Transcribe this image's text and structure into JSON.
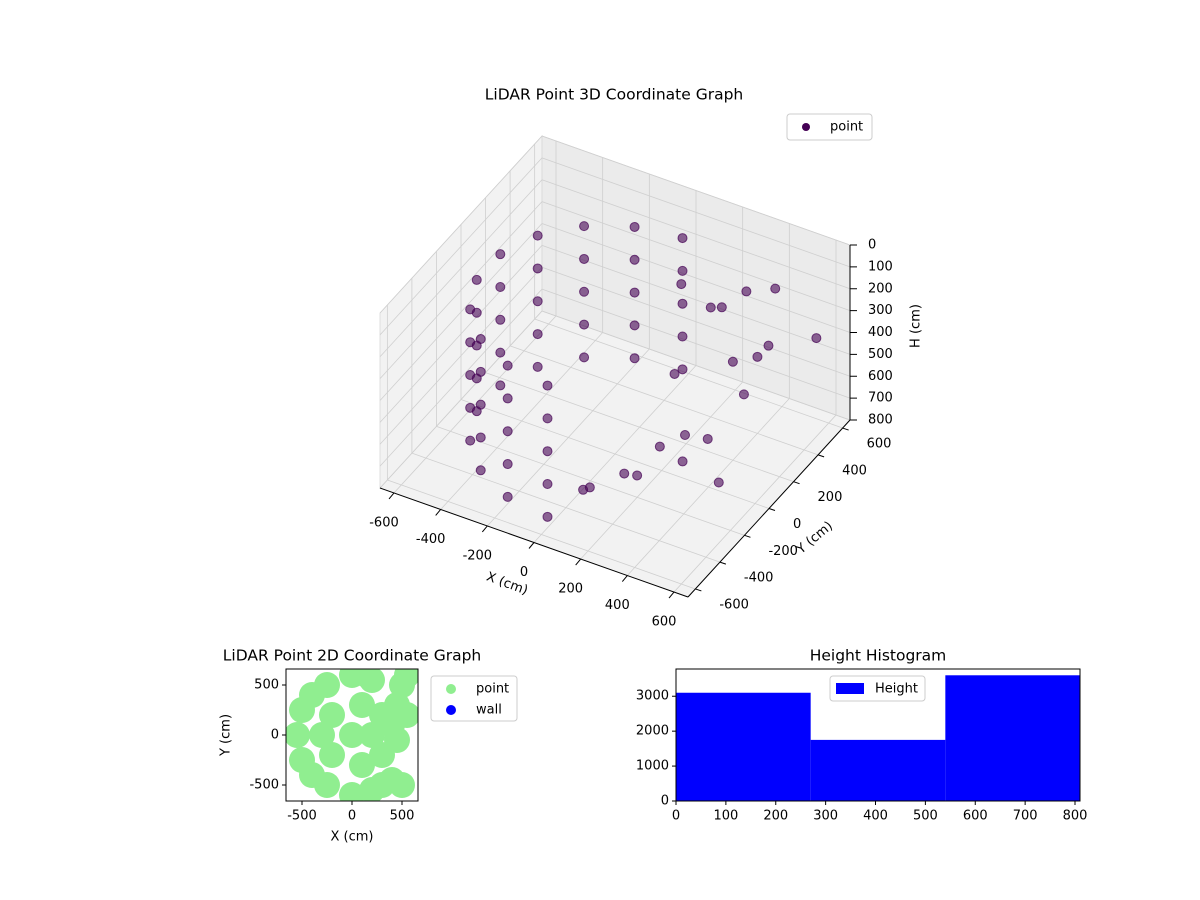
{
  "chart_data": [
    {
      "type": "scatter3d",
      "title": "LiDAR Point 3D Coordinate Graph",
      "xlabel": "X (cm)",
      "ylabel": "Y (cm)",
      "zlabel": "H (cm)",
      "xlim": [
        -660,
        660
      ],
      "ylim": [
        -660,
        660
      ],
      "zlim": [
        800,
        0
      ],
      "xticks": [
        -600,
        -400,
        -200,
        0,
        200,
        400,
        600
      ],
      "yticks": [
        -600,
        -400,
        -200,
        0,
        200,
        400,
        600
      ],
      "zticks": [
        0,
        100,
        200,
        300,
        400,
        500,
        600,
        700,
        800
      ],
      "grid": true,
      "legend": "upper right",
      "series": [
        {
          "name": "point",
          "color": "#440154",
          "x": [
            0,
            -188,
            -354,
            -476,
            -542,
            -542,
            -476,
            -354,
            -188,
            0,
            0,
            -188,
            -354,
            -476,
            -542,
            -542,
            -476,
            -354,
            -188,
            0,
            0,
            -188,
            -354,
            -476,
            -542,
            -542,
            -476,
            -354,
            -188,
            0,
            0,
            -188,
            -354,
            -476,
            -542,
            -542,
            -476,
            -354,
            -188,
            0,
            0,
            -188,
            -354,
            -476,
            -542,
            -542,
            -476,
            -354,
            -188,
            0,
            200,
            300,
            400,
            500,
            450,
            350,
            250,
            100,
            300,
            500,
            550,
            150,
            200,
            400,
            100,
            500,
            300,
            600,
            50,
            450
          ],
          "y": [
            550,
            517,
            421,
            275,
            96,
            -96,
            -275,
            -421,
            -517,
            -550,
            550,
            517,
            421,
            275,
            96,
            -96,
            -275,
            -421,
            -517,
            -550,
            550,
            517,
            421,
            275,
            96,
            -96,
            -275,
            -421,
            -517,
            -550,
            550,
            517,
            421,
            275,
            96,
            -96,
            -275,
            -421,
            -517,
            -550,
            550,
            517,
            421,
            275,
            96,
            -96,
            -275,
            -421,
            -517,
            -550,
            400,
            300,
            200,
            100,
            -100,
            -300,
            -400,
            -450,
            500,
            300,
            -200,
            200,
            -200,
            400,
            350,
            -400,
            0,
            500,
            -300,
            450
          ],
          "z": [
            150,
            150,
            150,
            150,
            150,
            150,
            150,
            150,
            150,
            150,
            300,
            300,
            300,
            300,
            300,
            300,
            300,
            300,
            300,
            300,
            450,
            450,
            450,
            450,
            450,
            450,
            450,
            450,
            450,
            450,
            600,
            600,
            600,
            600,
            600,
            600,
            600,
            600,
            600,
            600,
            750,
            750,
            750,
            750,
            750,
            750,
            750,
            750,
            750,
            750,
            300,
            200,
            350,
            400,
            500,
            450,
            550,
            650,
            250,
            300,
            600,
            500,
            700,
            450,
            200,
            400,
            600,
            350,
            750,
            150
          ]
        }
      ]
    },
    {
      "type": "scatter",
      "title": "LiDAR Point 2D Coordinate Graph",
      "xlabel": "X (cm)",
      "ylabel": "Y (cm)",
      "xlim": [
        -660,
        660
      ],
      "ylim": [
        -660,
        660
      ],
      "xticks": [
        -500,
        0,
        500
      ],
      "yticks": [
        -500,
        0,
        500
      ],
      "legend": "outside right",
      "series": [
        {
          "name": "point",
          "color": "#90ee90",
          "x": [
            -550,
            -500,
            -500,
            -400,
            -400,
            -250,
            -250,
            0,
            0,
            200,
            200,
            -300,
            -200,
            -200,
            0,
            100,
            100,
            200,
            300,
            300,
            400,
            450,
            500,
            550,
            400,
            450,
            300,
            500,
            150,
            550
          ],
          "y": [
            0,
            -250,
            250,
            -400,
            400,
            -500,
            500,
            -600,
            600,
            -550,
            550,
            0,
            -200,
            200,
            0,
            -300,
            300,
            0,
            -200,
            200,
            -450,
            300,
            500,
            600,
            100,
            -50,
            -500,
            -500,
            600,
            200
          ]
        },
        {
          "name": "wall",
          "color": "#0000ff",
          "x": [],
          "y": []
        }
      ]
    },
    {
      "type": "histogram",
      "title": "Height Histogram",
      "bins": [
        0,
        270,
        540,
        810
      ],
      "values": [
        3100,
        1750,
        3600
      ],
      "series_name": "Height",
      "color": "#0000ff",
      "xlim": [
        0,
        810
      ],
      "ylim": [
        0,
        3780
      ],
      "xticks": [
        0,
        100,
        200,
        300,
        400,
        500,
        600,
        700,
        800
      ],
      "yticks": [
        0,
        1000,
        2000,
        3000
      ],
      "legend": "upper center"
    }
  ]
}
